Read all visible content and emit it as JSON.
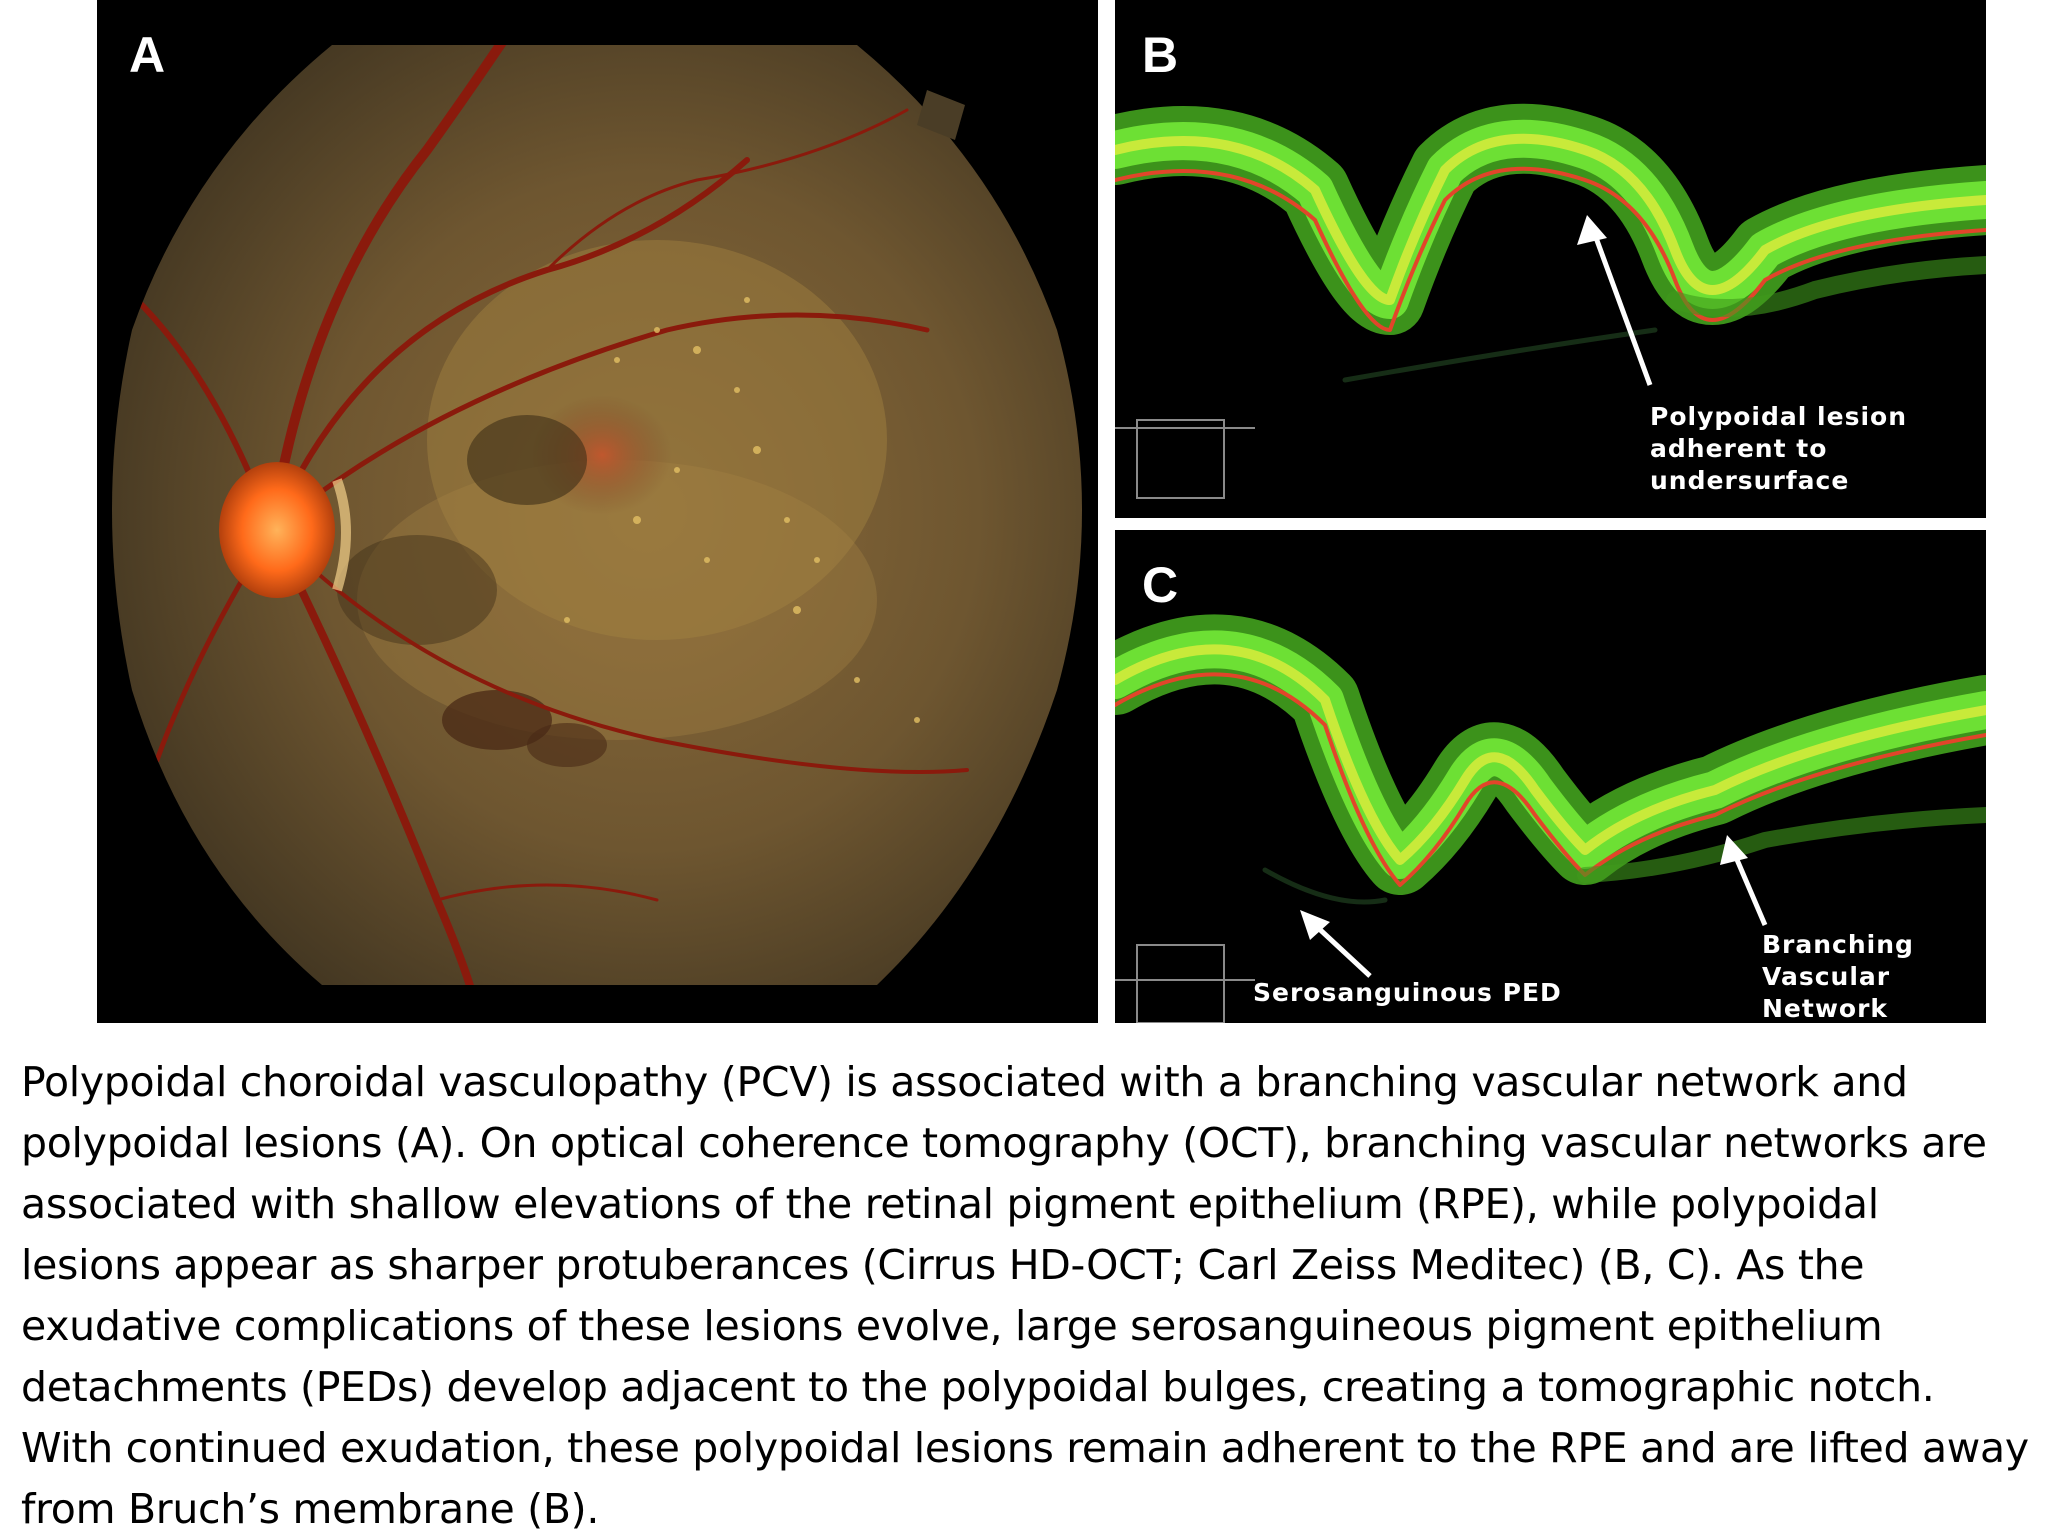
{
  "figure": {
    "panels": [
      {
        "id": "A",
        "letter": "A",
        "kind": "fundus photograph"
      },
      {
        "id": "B",
        "letter": "B",
        "kind": "OCT B-scan",
        "annotations": [
          "Polypoidal lesion adherent to undersurface"
        ]
      },
      {
        "id": "C",
        "letter": "C",
        "kind": "OCT B-scan",
        "annotations": [
          "Serosanguinous PED",
          "Branching Vascular Network"
        ]
      }
    ],
    "annotations": {
      "polypoidal_lesion": "Polypoidal lesion adherent to undersurface",
      "serosanguinous_ped": "Serosanguinous PED",
      "branching_vascular_network": "Branching Vascular Network"
    },
    "colors": {
      "fundus_background": "#5a4a2e",
      "optic_disc": "#ff6a1a",
      "vessel": "#8a1a0c",
      "oct_retina": "#5fd42a",
      "oct_rpe": "#e2452a",
      "panel_bg": "#000000"
    }
  },
  "caption": {
    "text": "Polypoidal choroidal vasculopathy (PCV) is associated with a branching vascular network and polypoidal lesions (A). On optical coherence tomography (OCT), branching vascular networks are associated with shallow elevations of the retinal pigment epithelium (RPE), while polypoidal lesions appear as sharper protuberances (Cirrus HD-OCT; Carl Zeiss Meditec) (B, C). As the exudative complications of these lesions evolve, large serosanguineous pigment epithelium detachments (PEDs) develop adjacent to the polypoidal bulges, creating a tomographic notch. With continued exudation, these polypoidal lesions remain adherent to the RPE and are lifted away from Bruch’s membrane (B)."
  }
}
